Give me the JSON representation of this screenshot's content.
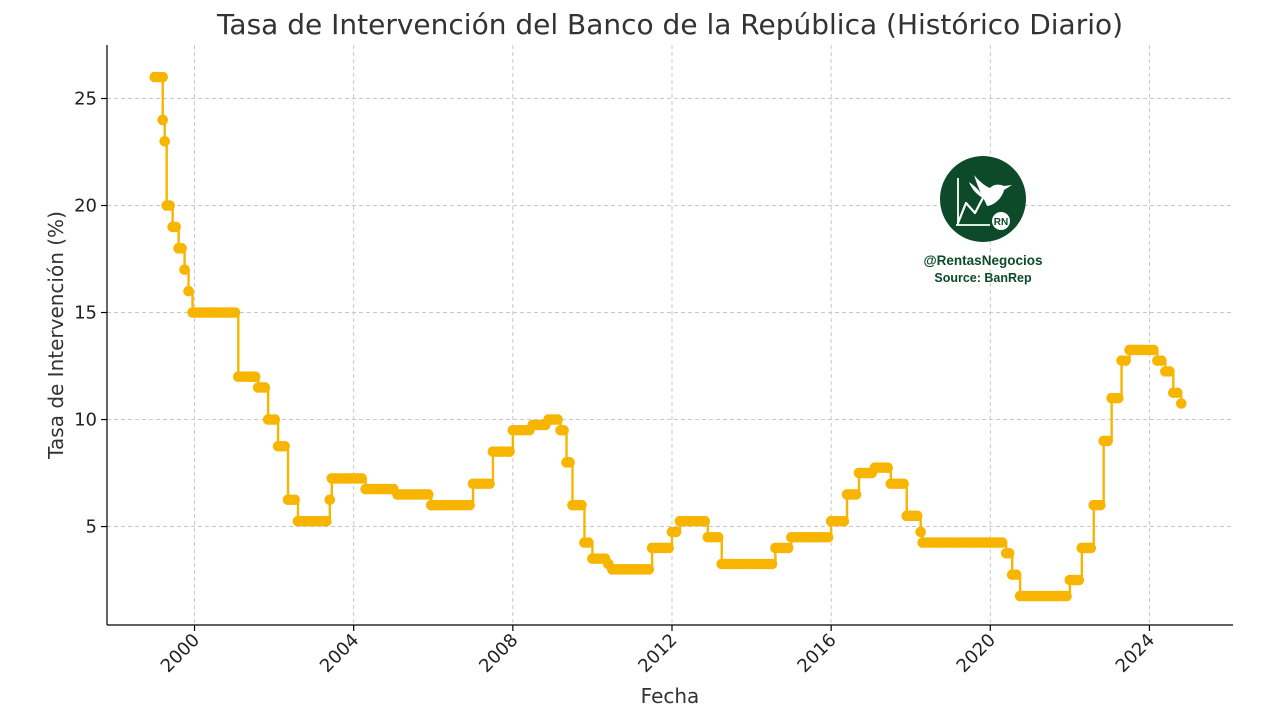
{
  "chart_data": {
    "type": "line",
    "title": "Tasa de Intervención del Banco de la República (Histórico Diario)",
    "xlabel": "Fecha",
    "ylabel": "Tasa de Intervención (%)",
    "xlim": [
      1997.8,
      2026.1
    ],
    "ylim": [
      0.4,
      27.5
    ],
    "x_ticks": [
      2000,
      2004,
      2008,
      2012,
      2016,
      2020,
      2024
    ],
    "x_tick_labels": [
      "2000",
      "2004",
      "2008",
      "2012",
      "2016",
      "2020",
      "2024"
    ],
    "y_ticks": [
      5,
      10,
      15,
      20,
      25
    ],
    "y_tick_labels": [
      "5",
      "10",
      "15",
      "20",
      "25"
    ],
    "grid": true,
    "series": [
      {
        "color": "#F7B500",
        "marker": "circle",
        "x": [
          1999.0,
          1999.2,
          1999.2,
          1999.25,
          1999.3,
          1999.45,
          1999.6,
          1999.75,
          1999.85,
          1999.95,
          2001.1,
          2001.3,
          2001.6,
          2001.85,
          2002.1,
          2002.35,
          2002.6,
          2002.75,
          2003.05,
          2003.4,
          2003.45,
          2004.2,
          2004.3,
          2005.0,
          2005.1,
          2005.8,
          2005.95,
          2006.4,
          2007.0,
          2007.5,
          2008.0,
          2008.5,
          2008.9,
          2009.05,
          2009.2,
          2009.35,
          2009.5,
          2009.8,
          2010.0,
          2010.4,
          2010.5,
          2011.0,
          2011.5,
          2012.0,
          2012.2,
          2012.6,
          2012.9,
          2013.25,
          2014.25,
          2014.6,
          2015.0,
          2015.85,
          2016.0,
          2016.4,
          2016.7,
          2017.1,
          2017.5,
          2017.9,
          2018.25,
          2018.3,
          2020.3,
          2020.4,
          2020.55,
          2020.75,
          2021.75,
          2022.0,
          2022.3,
          2022.6,
          2022.85,
          2023.05,
          2023.3,
          2023.5,
          2024.0,
          2024.2,
          2024.4,
          2024.6,
          2024.8
        ],
        "y": [
          26,
          26,
          24,
          23,
          20,
          19,
          18,
          17,
          16,
          15,
          12,
          12,
          11.5,
          10,
          8.75,
          6.25,
          5.25,
          5.25,
          5.25,
          6.25,
          7.25,
          7.25,
          6.75,
          6.75,
          6.5,
          6.5,
          6.0,
          6.0,
          7.0,
          8.5,
          9.5,
          9.75,
          10.0,
          10.0,
          9.5,
          8.0,
          6.0,
          4.25,
          3.5,
          3.25,
          3.0,
          3.0,
          4.0,
          4.75,
          5.25,
          5.25,
          4.5,
          3.25,
          3.25,
          4.0,
          4.5,
          4.5,
          5.25,
          6.5,
          7.5,
          7.75,
          7.0,
          5.5,
          4.75,
          4.25,
          4.25,
          3.75,
          2.75,
          1.75,
          1.75,
          2.5,
          4.0,
          6.0,
          9.0,
          11.0,
          12.75,
          13.25,
          13.25,
          12.75,
          12.25,
          11.25,
          10.75
        ]
      }
    ]
  },
  "logo": {
    "handle": "@RentasNegocios",
    "source": "Source: BanRep",
    "badge_text": "RN",
    "icon": "hummingbird-chart-icon",
    "bg_color": "#0C4A2A",
    "text_color": "#0C4A2A"
  }
}
